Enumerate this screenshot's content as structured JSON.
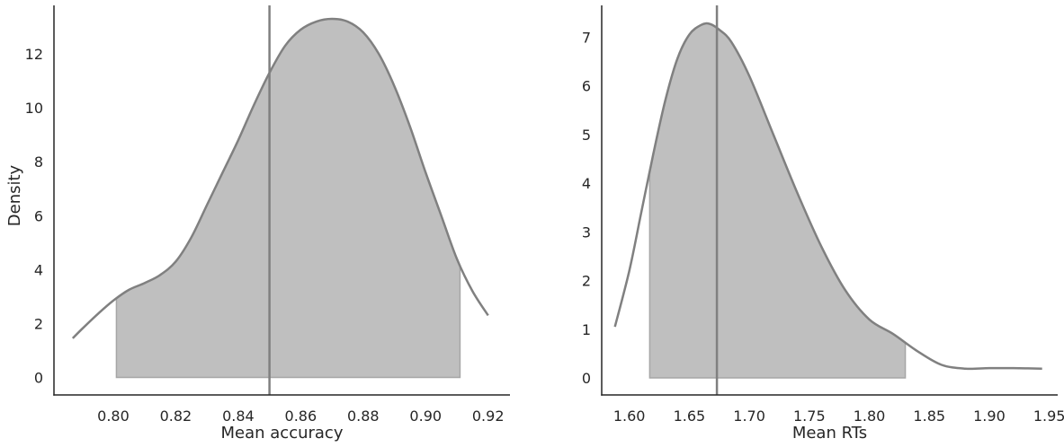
{
  "chart_data": [
    {
      "type": "area",
      "xlabel": "Mean accuracy",
      "ylabel": "Density",
      "xlim": [
        0.781,
        0.927
      ],
      "ylim": [
        -0.65,
        13.8
      ],
      "xticks": [
        "0.80",
        "0.82",
        "0.84",
        "0.86",
        "0.88",
        "0.90",
        "0.92"
      ],
      "xtick_values": [
        0.8,
        0.82,
        0.84,
        0.86,
        0.88,
        0.9,
        0.92
      ],
      "yticks": [
        "0",
        "2",
        "4",
        "6",
        "8",
        "10",
        "12"
      ],
      "ytick_values": [
        0,
        2,
        4,
        6,
        8,
        10,
        12
      ],
      "grid": false,
      "line_color": "#808080",
      "fill_color": "#bfbfbf",
      "vline": 0.85,
      "shade_range": [
        0.801,
        0.911
      ],
      "series": [
        {
          "x": [
            0.787,
            0.79,
            0.795,
            0.8,
            0.805,
            0.81,
            0.815,
            0.82,
            0.825,
            0.83,
            0.835,
            0.84,
            0.845,
            0.85,
            0.855,
            0.86,
            0.865,
            0.87,
            0.875,
            0.88,
            0.885,
            0.89,
            0.895,
            0.9,
            0.905,
            0.91,
            0.915,
            0.92
          ],
          "y": [
            1.45,
            1.8,
            2.35,
            2.85,
            3.25,
            3.5,
            3.8,
            4.3,
            5.2,
            6.4,
            7.6,
            8.8,
            10.1,
            11.3,
            12.3,
            12.9,
            13.2,
            13.3,
            13.2,
            12.8,
            12.0,
            10.8,
            9.3,
            7.6,
            6.0,
            4.4,
            3.2,
            2.3
          ]
        }
      ]
    },
    {
      "type": "area",
      "xlabel": "Mean RTs",
      "ylabel": "",
      "xlim": [
        1.577,
        1.957
      ],
      "ylim": [
        -0.35,
        7.65
      ],
      "xticks": [
        "1.60",
        "1.65",
        "1.70",
        "1.75",
        "1.80",
        "1.85",
        "1.90",
        "1.95"
      ],
      "xtick_values": [
        1.6,
        1.65,
        1.7,
        1.75,
        1.8,
        1.85,
        1.9,
        1.95
      ],
      "yticks": [
        "0",
        "1",
        "2",
        "3",
        "4",
        "5",
        "6",
        "7"
      ],
      "ytick_values": [
        0,
        1,
        2,
        3,
        4,
        5,
        6,
        7
      ],
      "grid": false,
      "line_color": "#808080",
      "fill_color": "#bfbfbf",
      "vline": 1.673,
      "shade_range": [
        1.617,
        1.83
      ],
      "series": [
        {
          "x": [
            1.588,
            1.6,
            1.61,
            1.62,
            1.63,
            1.64,
            1.65,
            1.66,
            1.667,
            1.675,
            1.685,
            1.7,
            1.72,
            1.74,
            1.76,
            1.78,
            1.8,
            1.82,
            1.84,
            1.86,
            1.88,
            1.9,
            1.92,
            1.944
          ],
          "y": [
            1.05,
            2.2,
            3.4,
            4.6,
            5.7,
            6.55,
            7.05,
            7.25,
            7.27,
            7.15,
            6.9,
            6.2,
            5.0,
            3.8,
            2.7,
            1.8,
            1.2,
            0.9,
            0.55,
            0.27,
            0.19,
            0.2,
            0.2,
            0.19
          ]
        }
      ]
    }
  ]
}
